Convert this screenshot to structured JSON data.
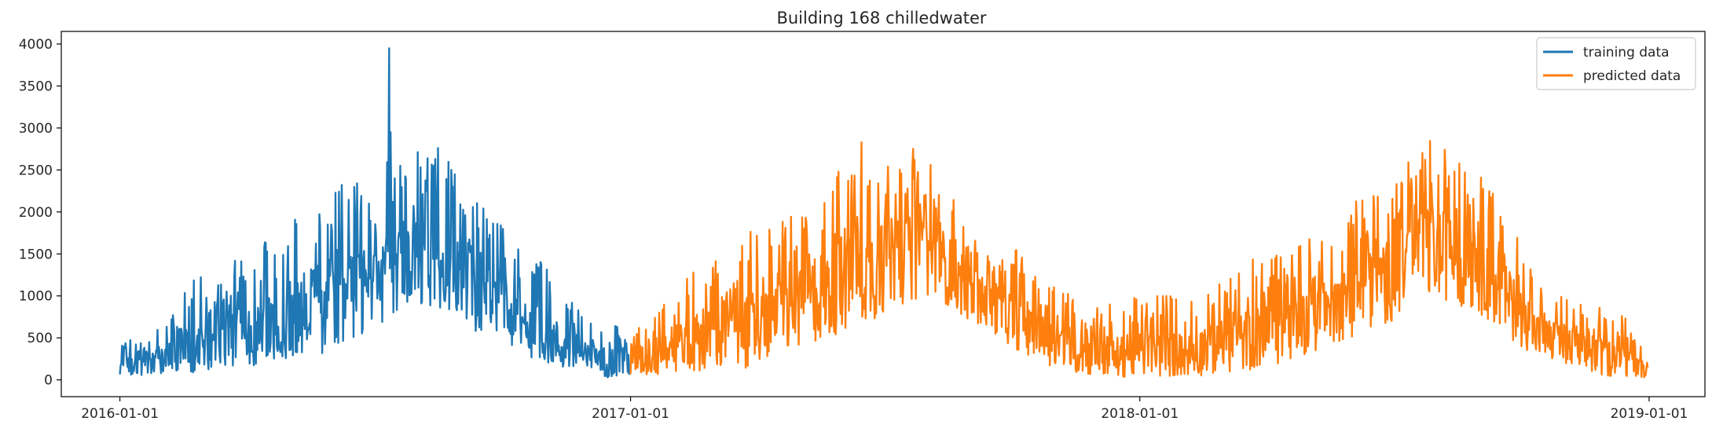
{
  "chart_data": {
    "type": "line",
    "title": "Building 168 chilledwater",
    "xlabel": "",
    "ylabel": "",
    "xlim": [
      "2015-11-20",
      "2019-02-10"
    ],
    "ylim": [
      -200,
      4150
    ],
    "x_ticks": [
      "2016-01-01",
      "2017-01-01",
      "2018-01-01",
      "2019-01-01"
    ],
    "y_ticks": [
      0,
      500,
      1000,
      1500,
      2000,
      2500,
      3000,
      3500,
      4000
    ],
    "grid": false,
    "legend": {
      "placement": "top-right",
      "entries": [
        "training data",
        "predicted data"
      ]
    },
    "series": [
      {
        "name": "training data",
        "color": "#1f77b4",
        "x_range": [
          "2016-01-01",
          "2016-12-31"
        ],
        "envelope": {
          "x": [
            "2016-01-01",
            "2016-01-15",
            "2016-02-01",
            "2016-02-15",
            "2016-03-01",
            "2016-03-15",
            "2016-04-01",
            "2016-04-15",
            "2016-05-01",
            "2016-05-15",
            "2016-06-01",
            "2016-06-15",
            "2016-07-01",
            "2016-07-15",
            "2016-08-01",
            "2016-08-15",
            "2016-09-01",
            "2016-09-15",
            "2016-10-01",
            "2016-10-15",
            "2016-11-01",
            "2016-11-15",
            "2016-12-01",
            "2016-12-15",
            "2016-12-31"
          ],
          "low": [
            40,
            40,
            50,
            60,
            100,
            100,
            120,
            150,
            200,
            250,
            350,
            450,
            600,
            800,
            900,
            800,
            650,
            500,
            400,
            300,
            200,
            100,
            40,
            30,
            30
          ],
          "high": [
            450,
            500,
            650,
            1150,
            1300,
            1350,
            1500,
            1700,
            1900,
            2000,
            2650,
            2350,
            2500,
            2700,
            2850,
            2800,
            2450,
            2400,
            2100,
            1500,
            1450,
            1000,
            750,
            650,
            650
          ]
        },
        "spikes": [
          {
            "x": "2016-07-12",
            "y": 3950
          },
          {
            "x": "2016-07-13",
            "y": 2950
          }
        ]
      },
      {
        "name": "predicted data",
        "color": "#ff7f0e",
        "x_range": [
          "2017-01-01",
          "2018-12-31"
        ],
        "envelope": {
          "x": [
            "2017-01-01",
            "2017-01-15",
            "2017-02-01",
            "2017-02-15",
            "2017-03-01",
            "2017-03-15",
            "2017-04-01",
            "2017-04-15",
            "2017-05-01",
            "2017-05-15",
            "2017-06-01",
            "2017-06-15",
            "2017-07-01",
            "2017-07-15",
            "2017-08-01",
            "2017-08-15",
            "2017-09-01",
            "2017-09-15",
            "2017-10-01",
            "2017-10-15",
            "2017-11-01",
            "2017-11-15",
            "2017-12-01",
            "2017-12-15",
            "2018-01-01",
            "2018-01-15",
            "2018-02-01",
            "2018-02-15",
            "2018-03-01",
            "2018-03-15",
            "2018-04-01",
            "2018-04-15",
            "2018-05-01",
            "2018-05-15",
            "2018-06-01",
            "2018-06-15",
            "2018-07-01",
            "2018-07-15",
            "2018-08-01",
            "2018-08-15",
            "2018-09-01",
            "2018-09-15",
            "2018-10-01",
            "2018-10-15",
            "2018-11-01",
            "2018-11-15",
            "2018-12-01",
            "2018-12-15",
            "2018-12-31"
          ],
          "low": [
            40,
            40,
            50,
            60,
            100,
            120,
            160,
            250,
            350,
            450,
            550,
            650,
            750,
            900,
            1000,
            900,
            700,
            600,
            400,
            250,
            150,
            80,
            40,
            30,
            30,
            30,
            40,
            50,
            80,
            100,
            150,
            200,
            300,
            400,
            500,
            600,
            700,
            900,
            1000,
            900,
            800,
            600,
            400,
            250,
            150,
            80,
            40,
            30,
            30
          ],
          "high": [
            600,
            850,
            1000,
            1400,
            1450,
            1500,
            1850,
            1900,
            2000,
            2400,
            2700,
            2850,
            2900,
            2800,
            2750,
            2500,
            1700,
            1650,
            1650,
            1300,
            1200,
            1000,
            950,
            900,
            1000,
            1050,
            950,
            1100,
            1150,
            1400,
            1500,
            1750,
            1700,
            1800,
            2100,
            2300,
            2500,
            2800,
            2900,
            2850,
            2600,
            2400,
            1600,
            1200,
            1100,
            900,
            850,
            750,
            250
          ]
        }
      }
    ]
  }
}
